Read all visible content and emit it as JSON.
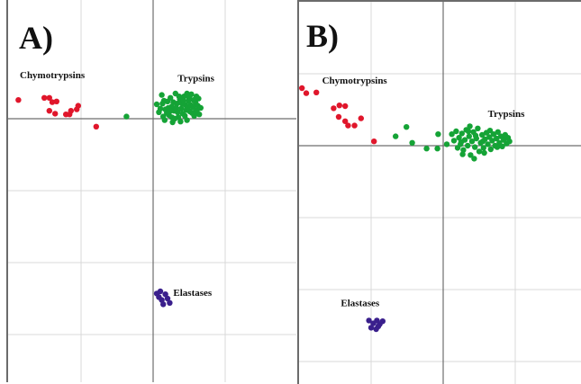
{
  "colors": {
    "Chymotrypsins": "#e0162b",
    "Trypsins": "#15a336",
    "Elastases": "#3a1f8c"
  },
  "chart_data": [
    {
      "type": "scatter",
      "panel_label": "A)",
      "title": "",
      "xlabel": "",
      "ylabel": "",
      "grid": true,
      "xlim": [
        -2,
        2
      ],
      "ylim": [
        -3,
        1
      ],
      "cluster_labels": [
        {
          "text": "Chymotrypsins",
          "x": -1.85,
          "y": 0.56
        },
        {
          "text": "Trypsins",
          "x": 0.34,
          "y": 0.52
        },
        {
          "text": "Elastases",
          "x": 0.28,
          "y": -2.46
        }
      ],
      "series": [
        {
          "name": "Chymotrypsins",
          "points": [
            [
              -1.87,
              0.26
            ],
            [
              -1.51,
              0.29
            ],
            [
              -1.44,
              0.29
            ],
            [
              -1.4,
              0.23
            ],
            [
              -1.34,
              0.24
            ],
            [
              -1.44,
              0.11
            ],
            [
              -1.36,
              0.07
            ],
            [
              -1.21,
              0.06
            ],
            [
              -1.16,
              0.06
            ],
            [
              -1.14,
              0.11
            ],
            [
              -1.06,
              0.13
            ],
            [
              -1.04,
              0.18
            ],
            [
              -0.79,
              -0.11
            ]
          ]
        },
        {
          "name": "Trypsins",
          "points": [
            [
              -0.37,
              0.03
            ],
            [
              0.05,
              0.2
            ],
            [
              0.08,
              0.09
            ],
            [
              0.12,
              0.33
            ],
            [
              0.14,
              0.03
            ],
            [
              0.17,
              0.13
            ],
            [
              0.2,
              0.24
            ],
            [
              0.22,
              0.05
            ],
            [
              0.24,
              0.29
            ],
            [
              0.26,
              0.17
            ],
            [
              0.27,
              -0.05
            ],
            [
              0.29,
              0.11
            ],
            [
              0.31,
              0.35
            ],
            [
              0.33,
              0.21
            ],
            [
              0.35,
              0.02
            ],
            [
              0.37,
              0.27
            ],
            [
              0.39,
              0.14
            ],
            [
              0.41,
              0.07
            ],
            [
              0.43,
              0.31
            ],
            [
              0.45,
              0.19
            ],
            [
              0.47,
              -0.02
            ],
            [
              0.49,
              0.25
            ],
            [
              0.51,
              0.1
            ],
            [
              0.53,
              0.34
            ],
            [
              0.55,
              0.16
            ],
            [
              0.57,
              0.04
            ],
            [
              0.59,
              0.22
            ],
            [
              0.61,
              0.12
            ],
            [
              0.63,
              0.28
            ],
            [
              0.64,
              0.06
            ],
            [
              0.15,
              0.25
            ],
            [
              0.21,
              0.15
            ],
            [
              0.28,
              0.23
            ],
            [
              0.34,
              0.09
            ],
            [
              0.4,
              0.21
            ],
            [
              0.46,
              0.12
            ],
            [
              0.52,
              0.19
            ],
            [
              0.58,
              0.09
            ],
            [
              0.19,
              0.08
            ],
            [
              0.26,
              0.02
            ],
            [
              0.36,
              0.31
            ],
            [
              0.44,
              0.04
            ],
            [
              0.5,
              0.29
            ],
            [
              0.56,
              0.26
            ],
            [
              0.62,
              0.18
            ],
            [
              0.1,
              0.14
            ],
            [
              0.16,
              -0.02
            ],
            [
              0.3,
              0.0
            ],
            [
              0.38,
              -0.04
            ],
            [
              0.48,
              0.16
            ],
            [
              0.54,
              0.08
            ],
            [
              0.42,
              0.25
            ],
            [
              0.32,
              0.15
            ],
            [
              0.24,
              0.11
            ],
            [
              0.6,
              0.31
            ],
            [
              0.13,
              0.21
            ],
            [
              0.66,
              0.15
            ],
            [
              0.47,
              0.35
            ]
          ]
        },
        {
          "name": "Elastases",
          "points": [
            [
              0.05,
              -2.43
            ],
            [
              0.08,
              -2.48
            ],
            [
              0.12,
              -2.52
            ],
            [
              0.17,
              -2.44
            ],
            [
              0.2,
              -2.5
            ],
            [
              0.23,
              -2.56
            ],
            [
              0.14,
              -2.58
            ],
            [
              0.1,
              -2.4
            ]
          ]
        }
      ]
    },
    {
      "type": "scatter",
      "panel_label": "B)",
      "title": "",
      "xlabel": "",
      "ylabel": "",
      "grid": true,
      "xlim": [
        -2,
        2
      ],
      "ylim": [
        -3,
        1
      ],
      "cluster_labels": [
        {
          "text": "Chymotrypsins",
          "x": -1.68,
          "y": 0.86
        },
        {
          "text": "Trypsins",
          "x": 0.62,
          "y": 0.4
        },
        {
          "text": "Elastases",
          "x": -1.42,
          "y": -2.23
        }
      ],
      "series": [
        {
          "name": "Chymotrypsins",
          "points": [
            [
              -1.96,
              0.8
            ],
            [
              -1.9,
              0.73
            ],
            [
              -1.76,
              0.74
            ],
            [
              -1.52,
              0.52
            ],
            [
              -1.44,
              0.56
            ],
            [
              -1.36,
              0.55
            ],
            [
              -1.45,
              0.4
            ],
            [
              -1.36,
              0.34
            ],
            [
              -1.32,
              0.28
            ],
            [
              -1.23,
              0.28
            ],
            [
              -1.14,
              0.38
            ],
            [
              -0.96,
              0.06
            ]
          ]
        },
        {
          "name": "Trypsins",
          "points": [
            [
              -0.66,
              0.13
            ],
            [
              -0.51,
              0.26
            ],
            [
              -0.43,
              0.04
            ],
            [
              -0.23,
              -0.04
            ],
            [
              -0.08,
              -0.04
            ],
            [
              -0.07,
              0.16
            ],
            [
              0.05,
              0.02
            ],
            [
              0.12,
              0.16
            ],
            [
              0.15,
              0.07
            ],
            [
              0.18,
              0.2
            ],
            [
              0.2,
              -0.03
            ],
            [
              0.22,
              0.11
            ],
            [
              0.24,
              0.02
            ],
            [
              0.26,
              0.17
            ],
            [
              0.28,
              -0.06
            ],
            [
              0.3,
              0.08
            ],
            [
              0.32,
              0.22
            ],
            [
              0.34,
              0.0
            ],
            [
              0.36,
              0.13
            ],
            [
              0.38,
              -0.13
            ],
            [
              0.4,
              0.06
            ],
            [
              0.42,
              0.19
            ],
            [
              0.44,
              -0.02
            ],
            [
              0.46,
              0.1
            ],
            [
              0.48,
              0.24
            ],
            [
              0.5,
              -0.08
            ],
            [
              0.52,
              0.04
            ],
            [
              0.54,
              0.15
            ],
            [
              0.56,
              -0.03
            ],
            [
              0.58,
              0.09
            ],
            [
              0.6,
              0.18
            ],
            [
              0.62,
              0.02
            ],
            [
              0.64,
              0.12
            ],
            [
              0.66,
              -0.05
            ],
            [
              0.68,
              0.07
            ],
            [
              0.7,
              0.16
            ],
            [
              0.72,
              0.0
            ],
            [
              0.74,
              0.1
            ],
            [
              0.76,
              0.19
            ],
            [
              0.78,
              0.04
            ],
            [
              0.8,
              0.13
            ],
            [
              0.82,
              -0.01
            ],
            [
              0.84,
              0.08
            ],
            [
              0.86,
              0.15
            ],
            [
              0.88,
              0.03
            ],
            [
              0.9,
              0.11
            ],
            [
              0.92,
              0.06
            ],
            [
              0.25,
              0.05
            ],
            [
              0.35,
              0.2
            ],
            [
              0.45,
              0.14
            ],
            [
              0.55,
              0.06
            ],
            [
              0.65,
              0.21
            ],
            [
              0.75,
              -0.02
            ],
            [
              0.27,
              -0.12
            ],
            [
              0.43,
              -0.18
            ],
            [
              0.57,
              -0.1
            ],
            [
              0.37,
              0.27
            ]
          ]
        },
        {
          "name": "Elastases",
          "points": [
            [
              -1.03,
              -2.43
            ],
            [
              -0.97,
              -2.47
            ],
            [
              -0.92,
              -2.43
            ],
            [
              -0.88,
              -2.48
            ],
            [
              -0.84,
              -2.44
            ],
            [
              -1.0,
              -2.53
            ],
            [
              -0.93,
              -2.55
            ],
            [
              -0.9,
              -2.51
            ]
          ]
        }
      ]
    }
  ]
}
